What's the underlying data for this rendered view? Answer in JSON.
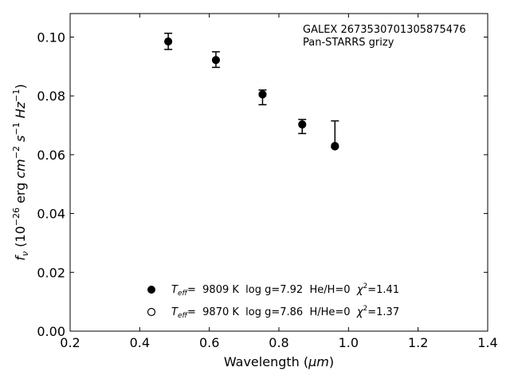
{
  "chart_data": {
    "type": "scatter",
    "annotation_lines": [
      "GALEX 2673530701305875476",
      "Pan-STARRS grizy"
    ],
    "xlabel_text": "Wavelength (",
    "xlabel_unit": "μm",
    "xlabel_close": ")",
    "ylabel": {
      "symbol": "f",
      "symbol_sub": "ν",
      "pre": " (10",
      "exp1": "−26",
      "mid1": " erg ",
      "cm": "cm",
      "exp2": "−2",
      "s": " s",
      "exp3": "−1",
      "hz": " Hz",
      "exp4": "−1",
      "post": ")"
    },
    "xlim": [
      0.2,
      1.4
    ],
    "ylim": [
      0.0,
      0.108
    ],
    "xticks": [
      0.2,
      0.4,
      0.6,
      0.8,
      1.0,
      1.2,
      1.4
    ],
    "xtick_labels": [
      "0.2",
      "0.4",
      "0.6",
      "0.8",
      "1.0",
      "1.2",
      "1.4"
    ],
    "yticks": [
      0.0,
      0.02,
      0.04,
      0.06,
      0.08,
      0.1
    ],
    "ytick_labels": [
      "0.00",
      "0.02",
      "0.04",
      "0.06",
      "0.08",
      "0.10"
    ],
    "observations": [
      {
        "x": 0.482,
        "y": 0.0985,
        "err_lo": 0.0958,
        "err_hi": 0.1013
      },
      {
        "x": 0.619,
        "y": 0.0922,
        "err_lo": 0.0897,
        "err_hi": 0.095
      },
      {
        "x": 0.753,
        "y": 0.0805,
        "err_lo": 0.077,
        "err_hi": 0.082
      },
      {
        "x": 0.867,
        "y": 0.0703,
        "err_lo": 0.0672,
        "err_hi": 0.072
      },
      {
        "x": 0.961,
        "y": 0.063,
        "err_lo": 0.0625,
        "err_hi": 0.0715
      }
    ],
    "model_points": [
      {
        "x": 0.482,
        "y": 0.0985
      },
      {
        "x": 0.619,
        "y": 0.0922
      },
      {
        "x": 0.753,
        "y": 0.0805
      },
      {
        "x": 0.867,
        "y": 0.0703
      },
      {
        "x": 0.961,
        "y": 0.0628
      }
    ],
    "legend": {
      "placement": "lower-center",
      "entries": [
        {
          "marker": "filled-circle",
          "teff_sym": "T",
          "teff_sub": "eff",
          "text": "=  9809 K  log g=7.92  He/H=0  ",
          "chi_sym": "χ",
          "chi_exp": "2",
          "chi_val": "=1.41"
        },
        {
          "marker": "open-circle",
          "teff_sym": "T",
          "teff_sub": "eff",
          "text": "=  9870 K  log g=7.86  H/He=0  ",
          "chi_sym": "χ",
          "chi_exp": "2",
          "chi_val": "=1.37"
        }
      ]
    },
    "colors": {
      "points": "#000000",
      "axes": "#000000",
      "background": "#ffffff"
    }
  }
}
